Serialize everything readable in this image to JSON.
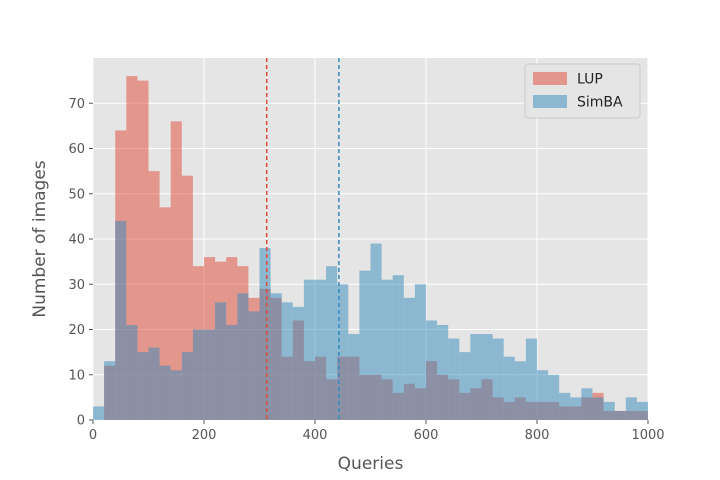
{
  "chart_data": {
    "type": "histogram",
    "xlabel": "Queries",
    "ylabel": "Number of images",
    "xlim": [
      0,
      1000
    ],
    "ylim": [
      0,
      80
    ],
    "xticks": [
      0,
      200,
      400,
      600,
      800,
      1000
    ],
    "yticks": [
      0,
      10,
      20,
      30,
      40,
      50,
      60,
      70
    ],
    "grid": true,
    "legend_position": "top-right",
    "bins": [
      0,
      20,
      40,
      60,
      80,
      100,
      120,
      140,
      160,
      180,
      200,
      220,
      240,
      260,
      280,
      300,
      320,
      340,
      360,
      380,
      400,
      420,
      440,
      460,
      480,
      500,
      520,
      540,
      560,
      580,
      600,
      620,
      640,
      660,
      680,
      700,
      720,
      740,
      760,
      780,
      800,
      820,
      840,
      860,
      880,
      900,
      920,
      940,
      960,
      980,
      1000
    ],
    "series": [
      {
        "name": "LUP",
        "color": "#E24A33",
        "opacity": 0.5,
        "mean_line": 313,
        "values": [
          0,
          12,
          64,
          76,
          75,
          55,
          47,
          66,
          54,
          34,
          36,
          35,
          36,
          34,
          27,
          29,
          27,
          14,
          22,
          13,
          14,
          9,
          14,
          14,
          10,
          10,
          9,
          6,
          8,
          7,
          13,
          10,
          9,
          6,
          7,
          9,
          5,
          4,
          5,
          4,
          4,
          4,
          3,
          3,
          5,
          6,
          2,
          2,
          2,
          2
        ]
      },
      {
        "name": "SimBA",
        "color": "#348ABD",
        "opacity": 0.5,
        "mean_line": 443,
        "values": [
          3,
          13,
          44,
          21,
          15,
          16,
          12,
          11,
          15,
          20,
          20,
          26,
          21,
          28,
          24,
          38,
          28,
          26,
          25,
          31,
          31,
          34,
          30,
          19,
          33,
          39,
          31,
          32,
          27,
          30,
          22,
          21,
          18,
          15,
          19,
          19,
          18,
          14,
          13,
          18,
          11,
          10,
          6,
          5,
          7,
          5,
          4,
          2,
          5,
          4
        ]
      }
    ]
  }
}
